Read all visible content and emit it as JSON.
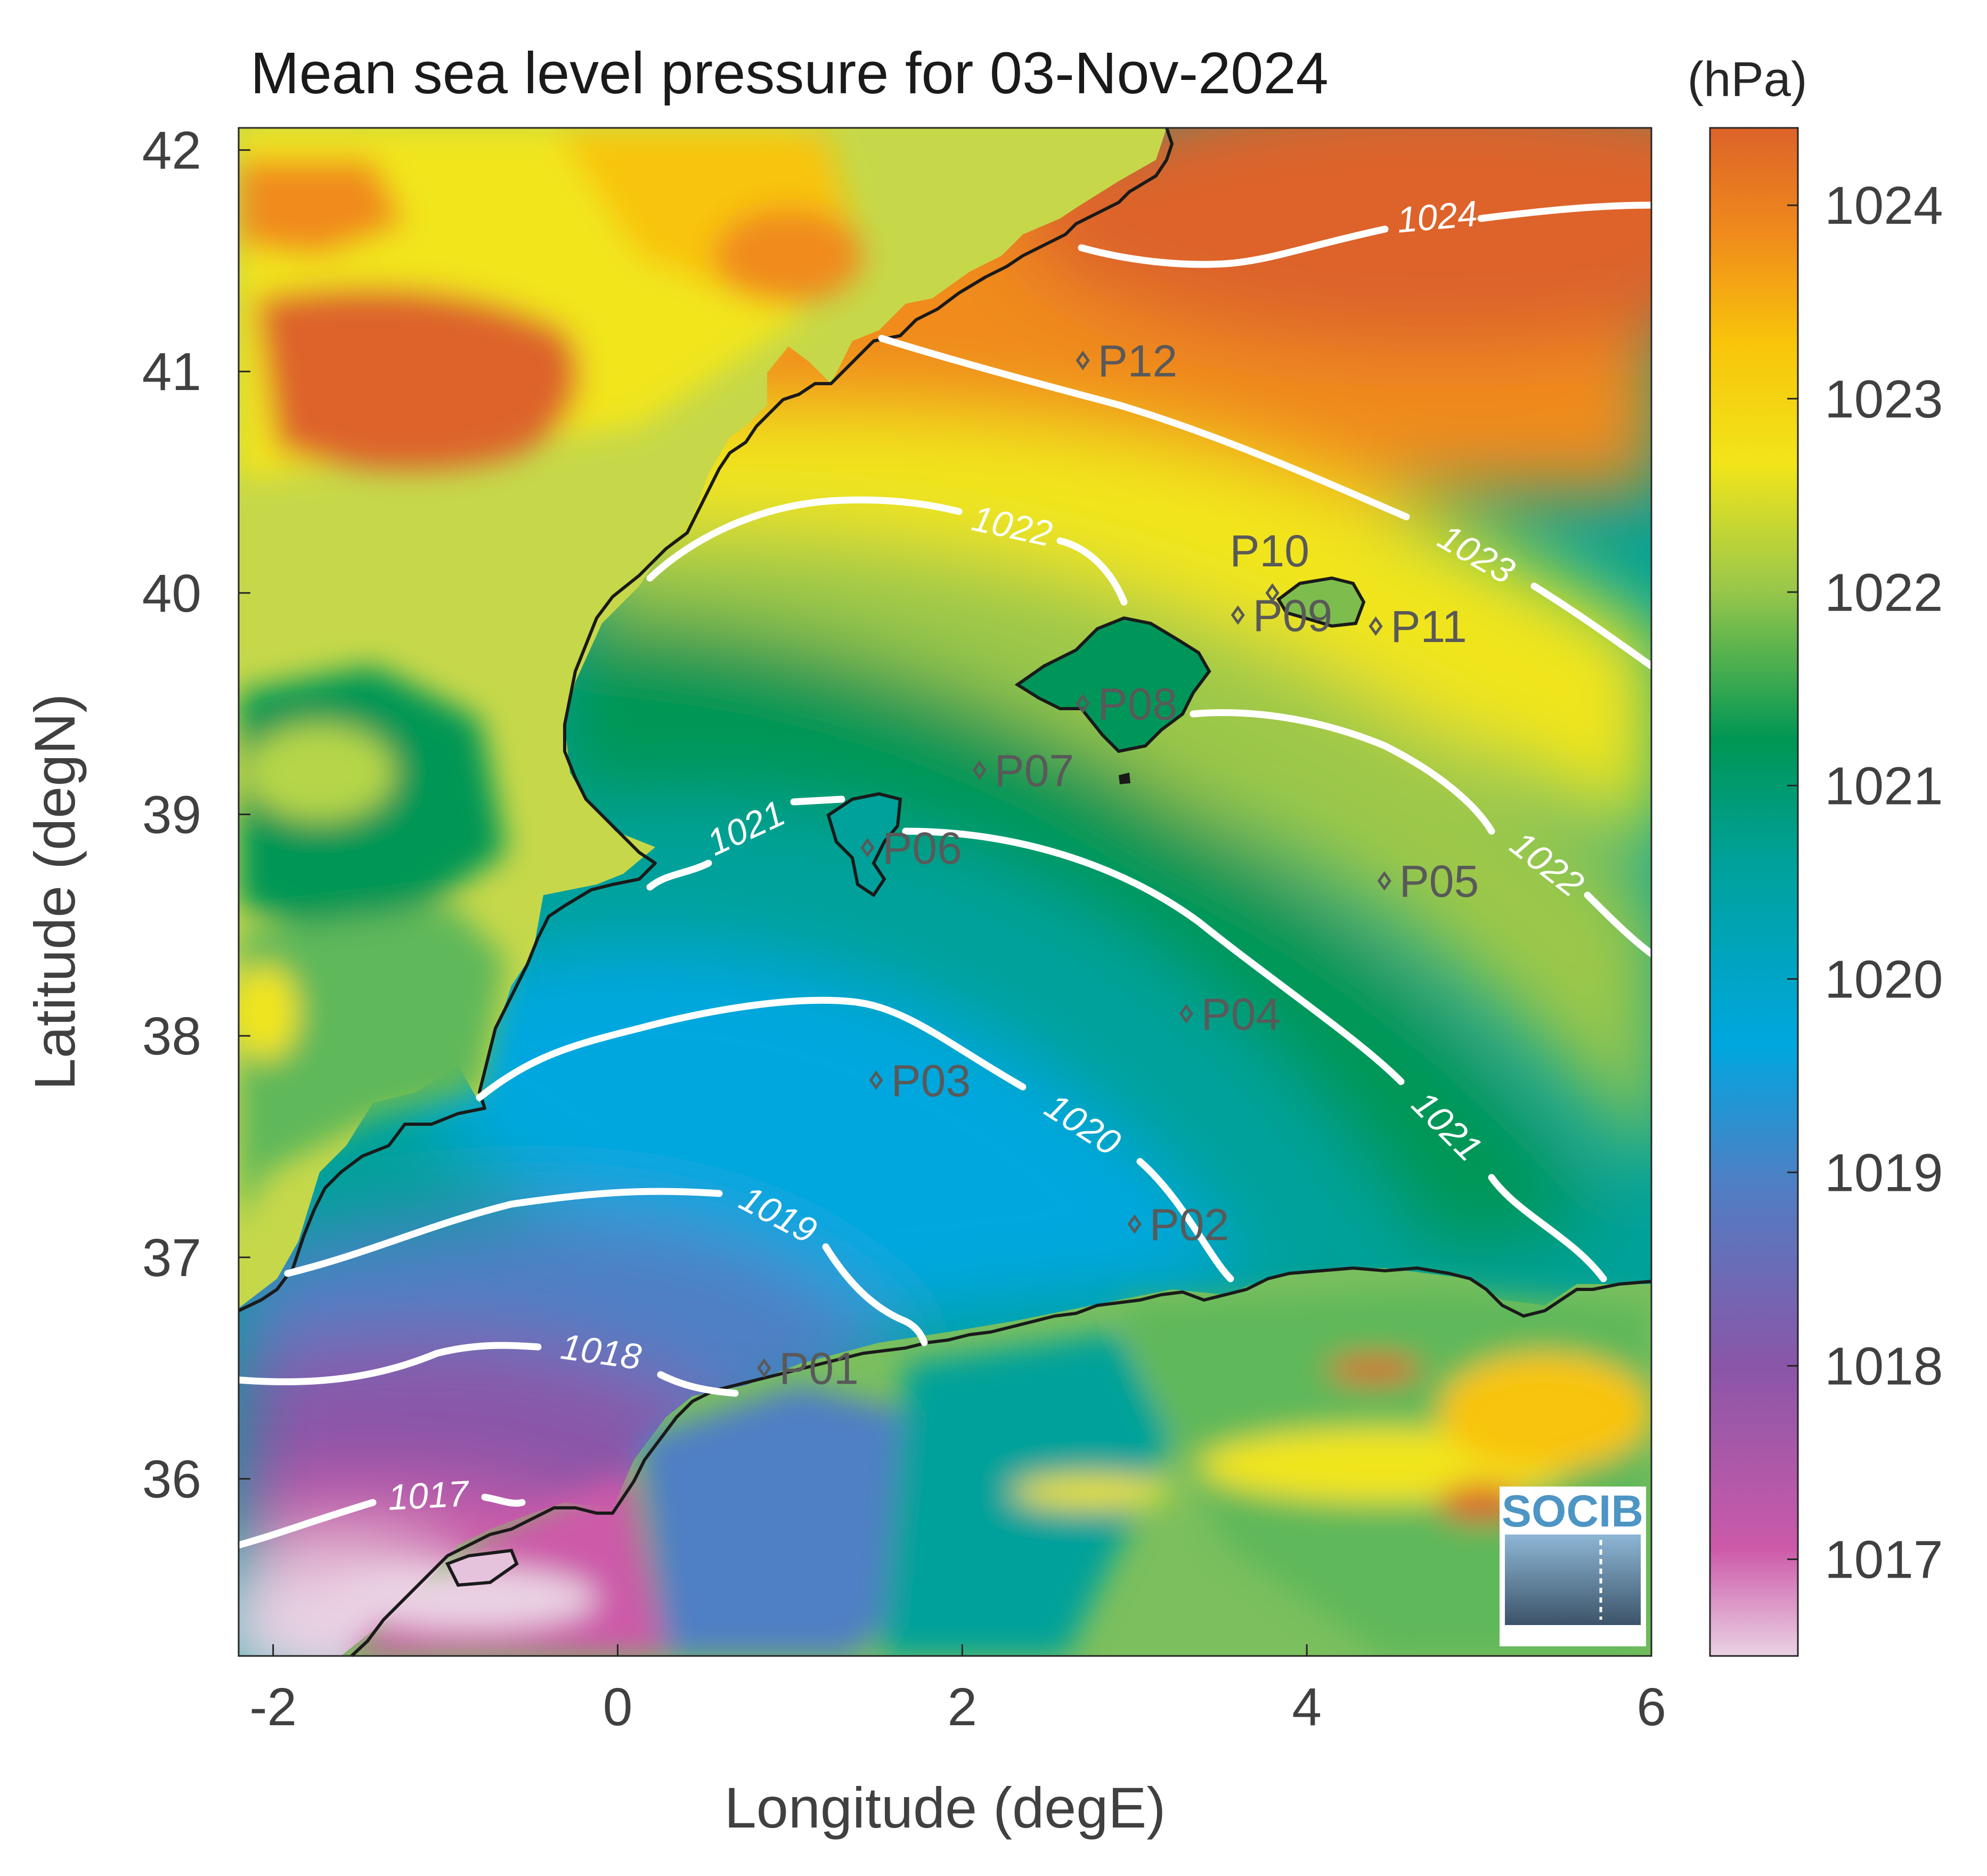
{
  "title": "Mean sea level pressure for 03-Nov-2024",
  "colorbar": {
    "unit": "(hPa)",
    "ticks": [
      "1024",
      "1023",
      "1022",
      "1021",
      "1020",
      "1019",
      "1018",
      "1017"
    ],
    "range": [
      1016.5,
      1024.4
    ],
    "colors": [
      "#e7c9de",
      "#cc5aa9",
      "#8a56a8",
      "#4f7fc4",
      "#00a7df",
      "#00a19a",
      "#009654",
      "#9cc84a",
      "#f1e51a",
      "#f8c40a",
      "#f08b1c",
      "#dd6329"
    ]
  },
  "logo": {
    "text": "SOCIB"
  },
  "chart_data": {
    "type": "heatmap",
    "title": "Mean sea level pressure for 03-Nov-2024",
    "xlabel": "Longitude (degE)",
    "ylabel": "Latitude (degN)",
    "xlim": [
      -2.2,
      6
    ],
    "ylim": [
      35.2,
      42.1
    ],
    "xticks": [
      "-2",
      "0",
      "2",
      "4",
      "6"
    ],
    "yticks": [
      "36",
      "37",
      "38",
      "39",
      "40",
      "41",
      "42"
    ],
    "contour_labels": [
      {
        "label": "1024",
        "lon": 3.6,
        "lat": 41.7
      },
      {
        "label": "1023",
        "lon": 4.8,
        "lat": 40.2
      },
      {
        "label": "1022",
        "lon": 2.2,
        "lat": 40.3
      },
      {
        "label": "1022",
        "lon": 4.9,
        "lat": 38.85
      },
      {
        "label": "1021",
        "lon": 0.65,
        "lat": 38.95
      },
      {
        "label": "1021",
        "lon": 4.9,
        "lat": 37.55
      },
      {
        "label": "1020",
        "lon": 2.7,
        "lat": 37.55
      },
      {
        "label": "1019",
        "lon": 1.15,
        "lat": 37.1
      },
      {
        "label": "1018",
        "lon": -0.1,
        "lat": 36.55
      },
      {
        "label": "1017",
        "lon": -1.05,
        "lat": 35.9
      }
    ],
    "stations": [
      {
        "name": "P01",
        "lon": 0.85,
        "lat": 36.5
      },
      {
        "name": "P02",
        "lon": 3.0,
        "lat": 37.15
      },
      {
        "name": "P03",
        "lon": 1.5,
        "lat": 37.8
      },
      {
        "name": "P04",
        "lon": 3.3,
        "lat": 38.1
      },
      {
        "name": "P05",
        "lon": 4.45,
        "lat": 38.7
      },
      {
        "name": "P06",
        "lon": 1.45,
        "lat": 38.85
      },
      {
        "name": "P07",
        "lon": 2.1,
        "lat": 39.2
      },
      {
        "name": "P08",
        "lon": 2.7,
        "lat": 39.5
      },
      {
        "name": "P09",
        "lon": 3.6,
        "lat": 39.9
      },
      {
        "name": "P10",
        "lon": 3.8,
        "lat": 40.0
      },
      {
        "name": "P11",
        "lon": 4.4,
        "lat": 39.85
      },
      {
        "name": "P12",
        "lon": 2.7,
        "lat": 41.05
      }
    ]
  }
}
